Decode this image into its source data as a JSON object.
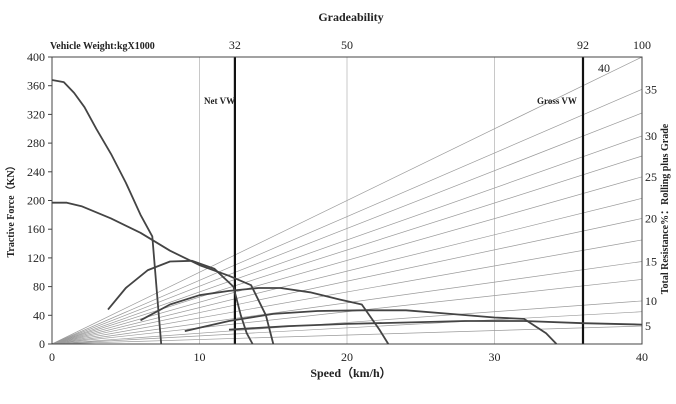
{
  "chart_data": {
    "type": "line",
    "title": "Gradeability",
    "xlabel": "Speed（km/h）",
    "ylabel": "Tractive Force（KN）",
    "y2label": "Total Resistance%：Rolling plus Grade",
    "top_axis_label": "Vehicle Weight:kgX1000",
    "xlim": [
      0,
      40
    ],
    "ylim": [
      0,
      400
    ],
    "x_ticks": [
      "0",
      "10",
      "20",
      "30",
      "40"
    ],
    "y_ticks": [
      "0",
      "40",
      "80",
      "120",
      "160",
      "200",
      "240",
      "280",
      "320",
      "360",
      "400"
    ],
    "right_ticks": [
      "5",
      "10",
      "15",
      "20",
      "25",
      "30",
      "35",
      "40"
    ],
    "right_tick_y": [
      25,
      60,
      115,
      175,
      233,
      290,
      355,
      385
    ],
    "top_ticks": [
      {
        "label": "32",
        "x": 12.4
      },
      {
        "label": "50",
        "x": 20
      },
      {
        "label": "92",
        "x": 36
      },
      {
        "label": "100",
        "x": 40
      }
    ],
    "vertical_lines": [
      {
        "name": "Net VW",
        "x": 12.4
      },
      {
        "name": "Gross VW",
        "x": 36
      }
    ],
    "grade_line_ends": [
      25,
      45,
      60,
      90,
      115,
      145,
      175,
      203,
      233,
      262,
      290,
      322,
      355,
      400
    ],
    "series": [
      {
        "points": [
          [
            0,
            368
          ],
          [
            0.8,
            365
          ],
          [
            1.5,
            350
          ],
          [
            2.2,
            330
          ],
          [
            3.0,
            300
          ],
          [
            4.0,
            265
          ],
          [
            5.0,
            225
          ],
          [
            6.0,
            180
          ],
          [
            6.8,
            150
          ],
          [
            7.2,
            50
          ],
          [
            7.4,
            0
          ]
        ]
      },
      {
        "points": [
          [
            0,
            197
          ],
          [
            1.0,
            197
          ],
          [
            2.0,
            192
          ],
          [
            4.0,
            175
          ],
          [
            6.0,
            155
          ],
          [
            8.0,
            130
          ],
          [
            10.0,
            110
          ],
          [
            12.0,
            95
          ],
          [
            13.5,
            82
          ],
          [
            14.5,
            40
          ],
          [
            15.0,
            0
          ]
        ]
      },
      {
        "points": [
          [
            3.8,
            48
          ],
          [
            5.0,
            78
          ],
          [
            6.5,
            103
          ],
          [
            8.0,
            115
          ],
          [
            9.5,
            116
          ],
          [
            11.0,
            105
          ],
          [
            12.3,
            80
          ],
          [
            12.8,
            40
          ],
          [
            13.2,
            15
          ],
          [
            13.6,
            0
          ]
        ]
      },
      {
        "points": [
          [
            6.0,
            33
          ],
          [
            8.0,
            55
          ],
          [
            10.0,
            68
          ],
          [
            12.0,
            74
          ],
          [
            14.0,
            78
          ],
          [
            15.5,
            78
          ],
          [
            17.5,
            72
          ],
          [
            19.5,
            62
          ],
          [
            21.0,
            55
          ],
          [
            22.2,
            20
          ],
          [
            22.8,
            0
          ]
        ]
      },
      {
        "points": [
          [
            9.0,
            18
          ],
          [
            12.0,
            32
          ],
          [
            15.0,
            42
          ],
          [
            18.0,
            46
          ],
          [
            21.0,
            47
          ],
          [
            24.0,
            47
          ],
          [
            27.0,
            42
          ],
          [
            30.0,
            37
          ],
          [
            32.0,
            35
          ],
          [
            33.5,
            15
          ],
          [
            34.2,
            0
          ]
        ]
      },
      {
        "points": [
          [
            12.0,
            20
          ],
          [
            16.0,
            25
          ],
          [
            20.0,
            28
          ],
          [
            24.0,
            30
          ],
          [
            28.0,
            32
          ],
          [
            32.0,
            32
          ],
          [
            36.0,
            29
          ],
          [
            40.0,
            27
          ]
        ]
      }
    ]
  },
  "labels": {
    "net_vw": "Net VW",
    "gross_vw": "Gross VW"
  }
}
